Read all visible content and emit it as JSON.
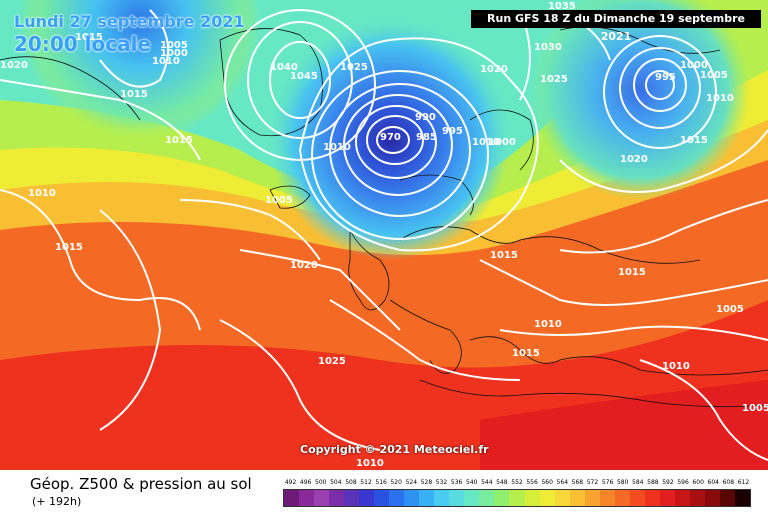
{
  "header": {
    "date_label": "Lundi 27 septembre 2021",
    "time_label": "20:00 locale",
    "run_label": "Run GFS 18 Z du Dimanche 19 septembre 2021"
  },
  "copyright": "Copyright © 2021 Meteociel.fr",
  "footer": {
    "product_label": "Géop. Z500 & pression au sol",
    "lead_label": "(+ 192h)"
  },
  "scale": {
    "labels": [
      "492",
      "496",
      "500",
      "504",
      "508",
      "512",
      "516",
      "520",
      "524",
      "528",
      "532",
      "536",
      "540",
      "544",
      "548",
      "552",
      "556",
      "560",
      "564",
      "568",
      "572",
      "576",
      "580",
      "584",
      "588",
      "592",
      "596",
      "600",
      "604",
      "608",
      "612"
    ],
    "colors": [
      "#6e1a78",
      "#8a2a9a",
      "#9d3fb0",
      "#7a2ea8",
      "#5a34b8",
      "#3c36d0",
      "#2a52e0",
      "#2a72ee",
      "#2e92f2",
      "#38b0f4",
      "#48ccf0",
      "#58dce0",
      "#66e8c4",
      "#76ec9c",
      "#92ee6e",
      "#b6ee4e",
      "#d6ee3a",
      "#eeec34",
      "#f8d838",
      "#f8be34",
      "#f8a230",
      "#f6862a",
      "#f46a24",
      "#f24c20",
      "#ee321e",
      "#e21e1e",
      "#c81616",
      "#a80f0f",
      "#880a0a",
      "#5a0505",
      "#1a0000"
    ]
  },
  "pressure_labels": [
    {
      "text": "1015"
    },
    {
      "text": "1005"
    },
    {
      "text": "1000"
    },
    {
      "text": "1020"
    },
    {
      "text": "1010"
    },
    {
      "text": "1015"
    },
    {
      "text": "1040"
    },
    {
      "text": "1045"
    },
    {
      "text": "1025"
    },
    {
      "text": "1035"
    },
    {
      "text": "1030"
    },
    {
      "text": "1025"
    },
    {
      "text": "1020"
    },
    {
      "text": "995"
    },
    {
      "text": "1000"
    },
    {
      "text": "1005"
    },
    {
      "text": "1010"
    },
    {
      "text": "990"
    },
    {
      "text": "985"
    },
    {
      "text": "970"
    },
    {
      "text": "995"
    },
    {
      "text": "1010"
    },
    {
      "text": "1000"
    },
    {
      "text": "1010"
    },
    {
      "text": "1005"
    },
    {
      "text": "1015"
    },
    {
      "text": "1015"
    },
    {
      "text": "1020"
    },
    {
      "text": "1015"
    },
    {
      "text": "1015"
    },
    {
      "text": "1010"
    },
    {
      "text": "1015"
    },
    {
      "text": "1025"
    },
    {
      "text": "1020"
    },
    {
      "text": "1010"
    },
    {
      "text": "1005"
    },
    {
      "text": "1010"
    },
    {
      "text": "1005"
    },
    {
      "text": "1010"
    },
    {
      "text": "1015"
    }
  ]
}
